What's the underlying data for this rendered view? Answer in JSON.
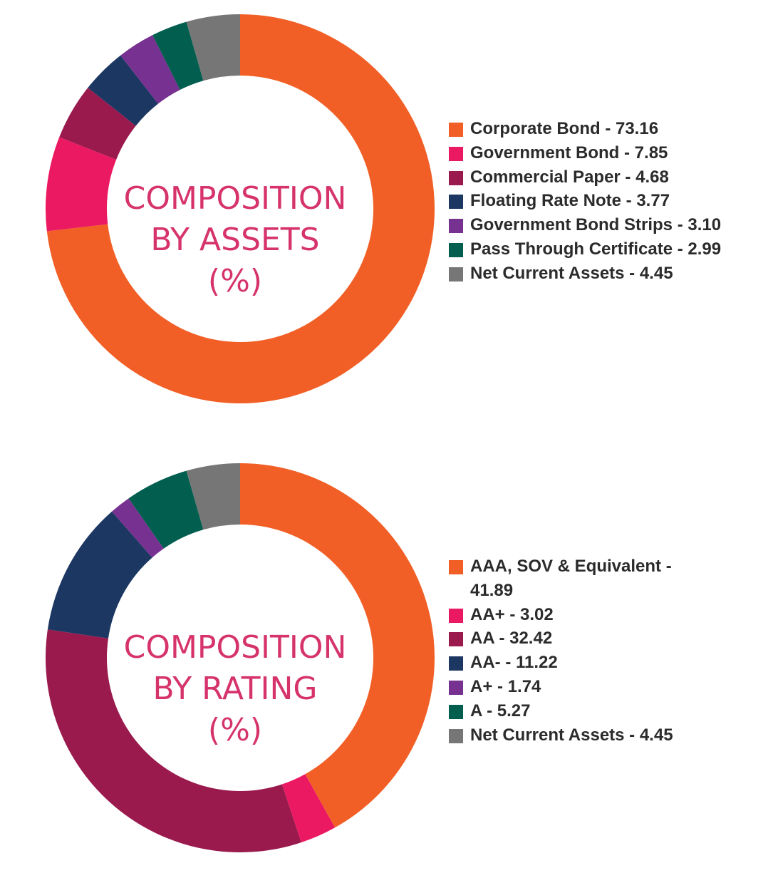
{
  "chart_data": [
    {
      "type": "pie",
      "donut": true,
      "center_text": [
        "COMPOSITION",
        "BY ASSETS",
        "(%)"
      ],
      "legend_position": "right",
      "slices": [
        {
          "label": "Corporate Bond - 73.16",
          "value": 73.16,
          "color": "#f15f26"
        },
        {
          "label": "Government Bond - 7.85",
          "value": 7.85,
          "color": "#eb1862"
        },
        {
          "label": "Commercial Paper - 4.68",
          "value": 4.68,
          "color": "#9a1a4e"
        },
        {
          "label": "Floating Rate Note - 3.77",
          "value": 3.77,
          "color": "#1c3762"
        },
        {
          "label": "Government Bond Strips - 3.10",
          "value": 3.1,
          "color": "#773190"
        },
        {
          "label": "Pass Through Certificate - 2.99",
          "value": 2.99,
          "color": "#025e4f"
        },
        {
          "label": "Net Current Assets - 4.45",
          "value": 4.45,
          "color": "#767676"
        }
      ]
    },
    {
      "type": "pie",
      "donut": true,
      "center_text": [
        "COMPOSITION",
        "BY RATING",
        "(%)"
      ],
      "legend_position": "right",
      "slices": [
        {
          "label": "AAA, SOV & Equivalent - 41.89",
          "value": 41.89,
          "color": "#f15f26"
        },
        {
          "label": "AA+ - 3.02",
          "value": 3.02,
          "color": "#eb1862"
        },
        {
          "label": "AA - 32.42",
          "value": 32.42,
          "color": "#9a1a4e"
        },
        {
          "label": "AA- - 11.22",
          "value": 11.22,
          "color": "#1c3762"
        },
        {
          "label": "A+ - 1.74",
          "value": 1.74,
          "color": "#773190"
        },
        {
          "label": "A - 5.27",
          "value": 5.27,
          "color": "#025e4f"
        },
        {
          "label": "Net Current Assets - 4.45",
          "value": 4.45,
          "color": "#767676"
        }
      ]
    }
  ]
}
